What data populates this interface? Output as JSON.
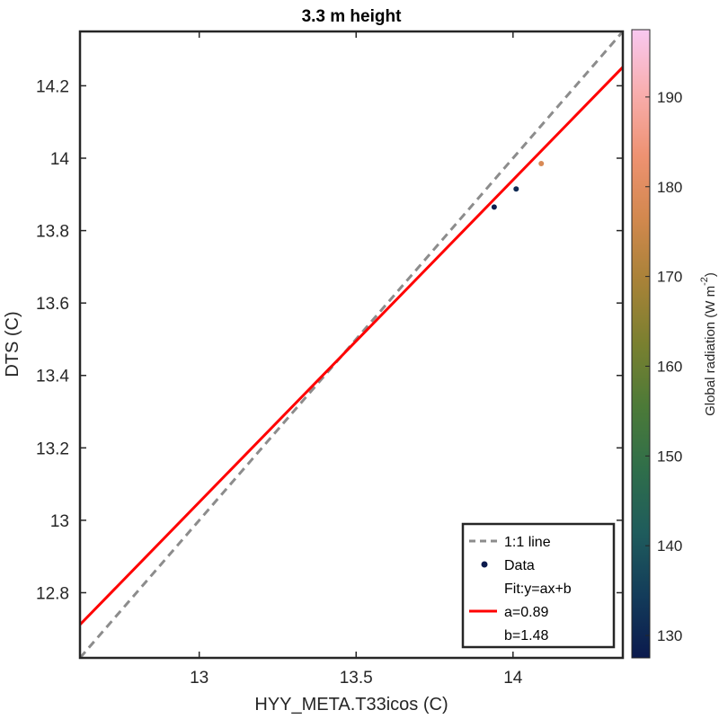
{
  "chart_data": {
    "type": "scatter",
    "title": "3.3 m height",
    "xlabel": "HYY_META.T33icos (C)",
    "ylabel": "DTS (C)",
    "xlim": [
      12.62,
      14.35
    ],
    "ylim": [
      12.62,
      14.35
    ],
    "xticks": [
      13,
      13.5,
      14
    ],
    "xtick_labels": [
      "13",
      "13.5",
      "14"
    ],
    "yticks": [
      12.8,
      13,
      13.2,
      13.4,
      13.6,
      13.8,
      14,
      14.2
    ],
    "ytick_labels": [
      "12.8",
      "13",
      "13.2",
      "13.4",
      "13.6",
      "13.8",
      "14",
      "14.2"
    ],
    "grid": false,
    "points": [
      {
        "x": 13.94,
        "y": 13.865,
        "radiation": 128
      },
      {
        "x": 14.01,
        "y": 13.915,
        "radiation": 131
      },
      {
        "x": 14.09,
        "y": 13.985,
        "radiation": 178
      }
    ],
    "one_to_one_line": {
      "color": "#8c8c8c",
      "style": "dashed"
    },
    "fit": {
      "a": 0.89,
      "b": 1.48,
      "color": "#ff0000"
    },
    "colorbar": {
      "label": "Global radiation (W m",
      "label_superscript": "-2",
      "label_close": ")",
      "range": [
        127.5,
        197.5
      ],
      "ticks": [
        130,
        140,
        150,
        160,
        170,
        180,
        190
      ],
      "tick_labels": [
        "130",
        "140",
        "150",
        "160",
        "170",
        "180",
        "190"
      ],
      "colormap": [
        "#0b1a4d",
        "#133c5a",
        "#1f5c5c",
        "#2f6e4a",
        "#4c7a38",
        "#7a8030",
        "#a88238",
        "#d2884e",
        "#ee9272",
        "#f8aeae",
        "#f8c8f0"
      ]
    },
    "legend": {
      "position": "bottom-right",
      "entries": [
        "1:1 line",
        "Data",
        "Fit:y=ax+b",
        "a=0.89",
        "b=1.48"
      ]
    }
  }
}
